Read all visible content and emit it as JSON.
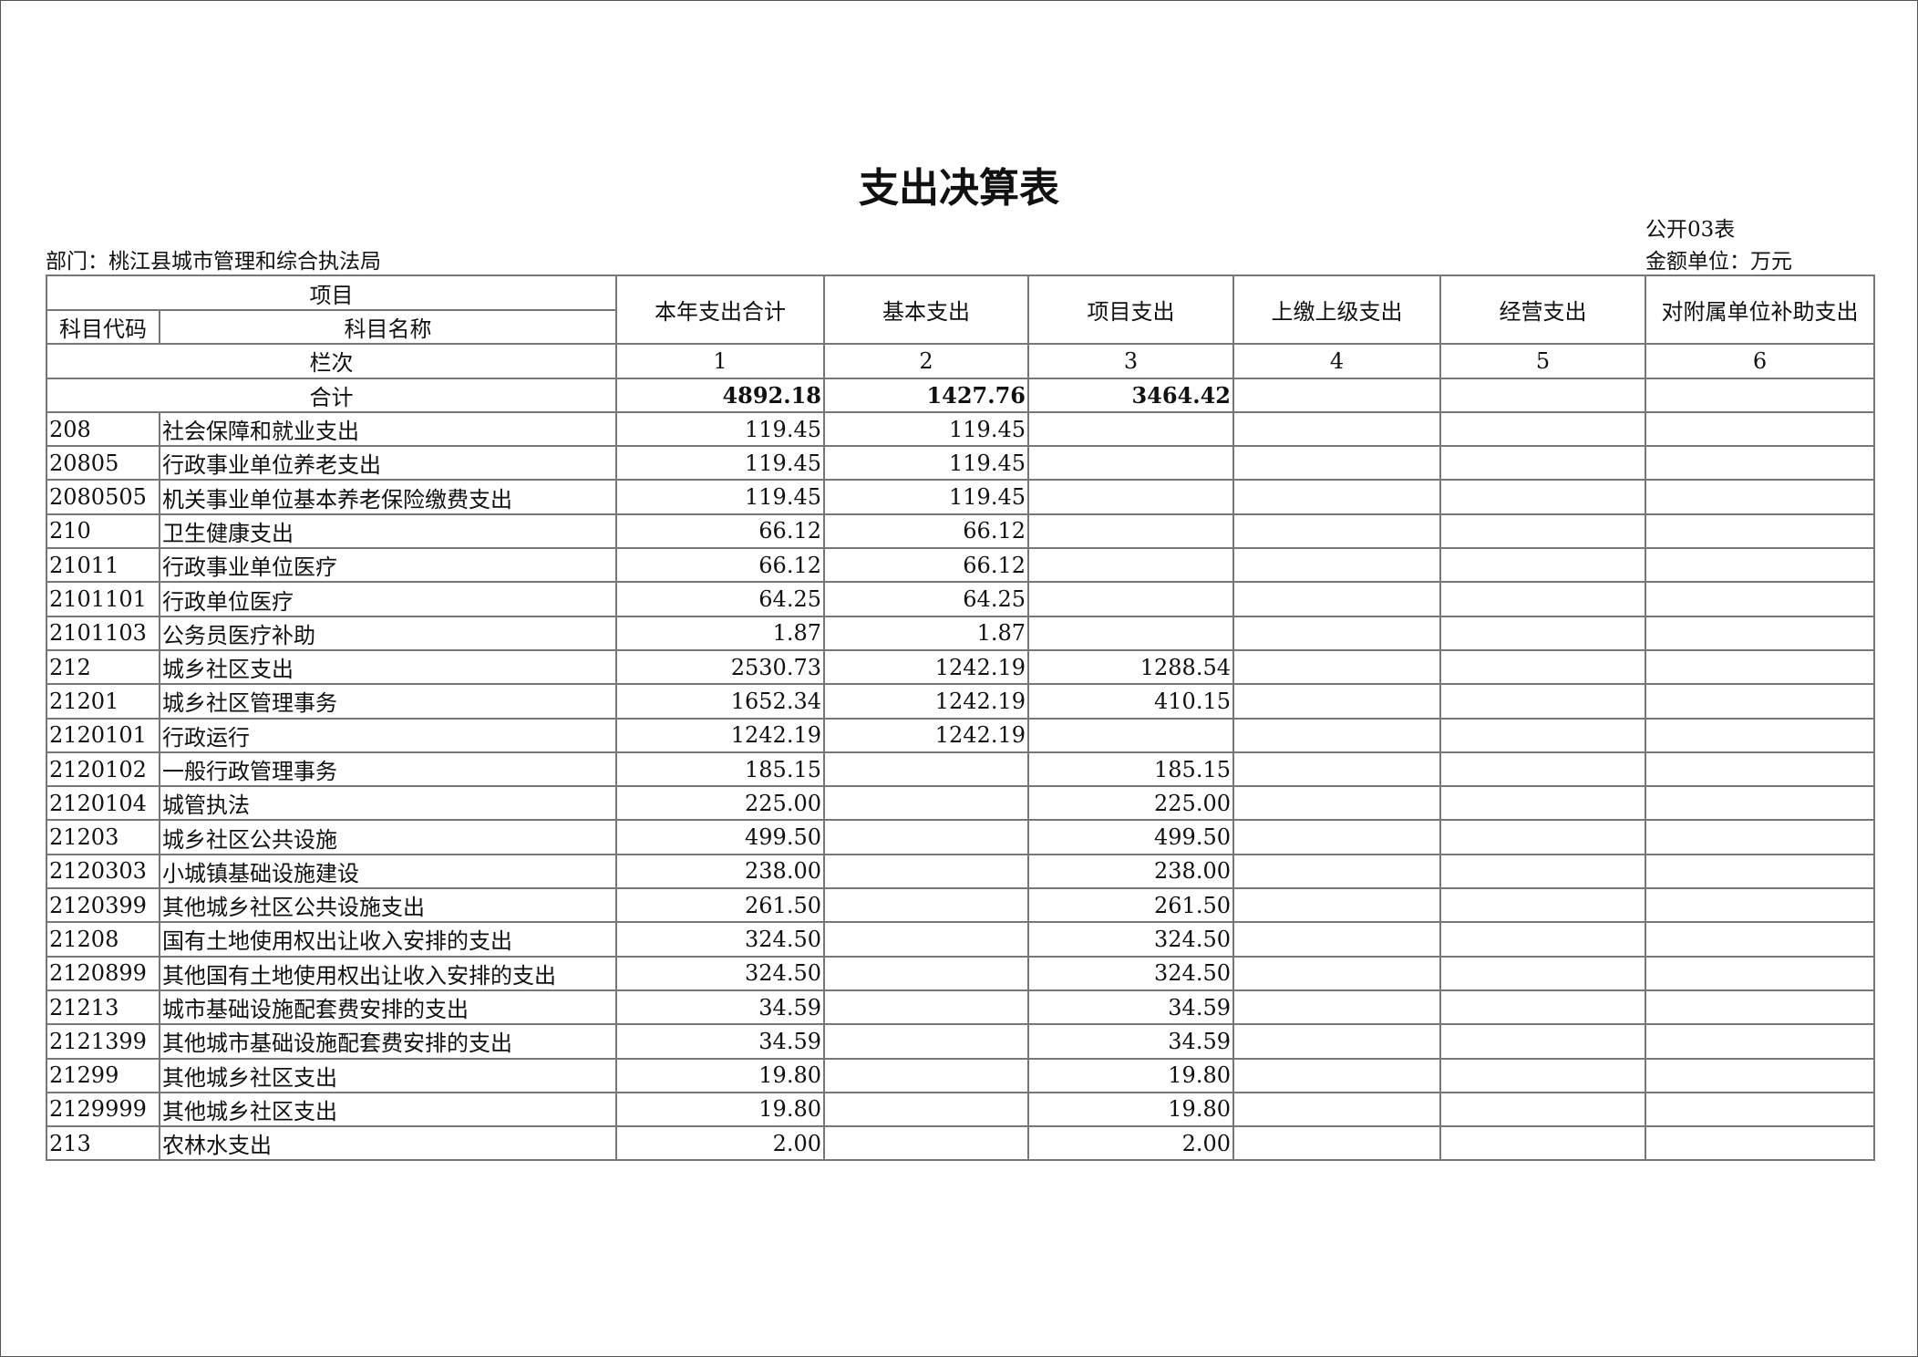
{
  "title": "支出决算表",
  "form_no": "公开03表",
  "department": "部门：桃江县城市管理和综合执法局",
  "unit": "金额单位：万元",
  "headers": {
    "item": "项目",
    "code": "科目代码",
    "name": "科目名称",
    "columns": [
      "本年支出合计",
      "基本支出",
      "项目支出",
      "上缴上级支出",
      "经营支出",
      "对附属单位补助支出"
    ],
    "order_label": "栏次",
    "order_numbers": [
      "1",
      "2",
      "3",
      "4",
      "5",
      "6"
    ]
  },
  "total": {
    "label": "合计",
    "values": [
      "4892.18",
      "1427.76",
      "3464.42",
      "",
      "",
      ""
    ]
  },
  "rows": [
    {
      "code": "208",
      "name": "社会保障和就业支出",
      "values": [
        "119.45",
        "119.45",
        "",
        "",
        "",
        ""
      ]
    },
    {
      "code": "20805",
      "name": "行政事业单位养老支出",
      "values": [
        "119.45",
        "119.45",
        "",
        "",
        "",
        ""
      ]
    },
    {
      "code": "2080505",
      "name": "机关事业单位基本养老保险缴费支出",
      "values": [
        "119.45",
        "119.45",
        "",
        "",
        "",
        ""
      ]
    },
    {
      "code": "210",
      "name": "卫生健康支出",
      "values": [
        "66.12",
        "66.12",
        "",
        "",
        "",
        ""
      ]
    },
    {
      "code": "21011",
      "name": "行政事业单位医疗",
      "values": [
        "66.12",
        "66.12",
        "",
        "",
        "",
        ""
      ]
    },
    {
      "code": "2101101",
      "name": "行政单位医疗",
      "values": [
        "64.25",
        "64.25",
        "",
        "",
        "",
        ""
      ]
    },
    {
      "code": "2101103",
      "name": "公务员医疗补助",
      "values": [
        "1.87",
        "1.87",
        "",
        "",
        "",
        ""
      ]
    },
    {
      "code": "212",
      "name": "城乡社区支出",
      "values": [
        "2530.73",
        "1242.19",
        "1288.54",
        "",
        "",
        ""
      ]
    },
    {
      "code": "21201",
      "name": "城乡社区管理事务",
      "values": [
        "1652.34",
        "1242.19",
        "410.15",
        "",
        "",
        ""
      ]
    },
    {
      "code": "2120101",
      "name": "行政运行",
      "values": [
        "1242.19",
        "1242.19",
        "",
        "",
        "",
        ""
      ]
    },
    {
      "code": "2120102",
      "name": "一般行政管理事务",
      "values": [
        "185.15",
        "",
        "185.15",
        "",
        "",
        ""
      ]
    },
    {
      "code": "2120104",
      "name": "城管执法",
      "values": [
        "225.00",
        "",
        "225.00",
        "",
        "",
        ""
      ]
    },
    {
      "code": "21203",
      "name": "城乡社区公共设施",
      "values": [
        "499.50",
        "",
        "499.50",
        "",
        "",
        ""
      ]
    },
    {
      "code": "2120303",
      "name": "小城镇基础设施建设",
      "values": [
        "238.00",
        "",
        "238.00",
        "",
        "",
        ""
      ]
    },
    {
      "code": "2120399",
      "name": "其他城乡社区公共设施支出",
      "values": [
        "261.50",
        "",
        "261.50",
        "",
        "",
        ""
      ]
    },
    {
      "code": "21208",
      "name": "国有土地使用权出让收入安排的支出",
      "values": [
        "324.50",
        "",
        "324.50",
        "",
        "",
        ""
      ]
    },
    {
      "code": "2120899",
      "name": "其他国有土地使用权出让收入安排的支出",
      "values": [
        "324.50",
        "",
        "324.50",
        "",
        "",
        ""
      ]
    },
    {
      "code": "21213",
      "name": "城市基础设施配套费安排的支出",
      "values": [
        "34.59",
        "",
        "34.59",
        "",
        "",
        ""
      ]
    },
    {
      "code": "2121399",
      "name": "其他城市基础设施配套费安排的支出",
      "values": [
        "34.59",
        "",
        "34.59",
        "",
        "",
        ""
      ]
    },
    {
      "code": "21299",
      "name": "其他城乡社区支出",
      "values": [
        "19.80",
        "",
        "19.80",
        "",
        "",
        ""
      ]
    },
    {
      "code": "2129999",
      "name": "其他城乡社区支出",
      "values": [
        "19.80",
        "",
        "19.80",
        "",
        "",
        ""
      ]
    },
    {
      "code": "213",
      "name": "农林水支出",
      "values": [
        "2.00",
        "",
        "2.00",
        "",
        "",
        ""
      ]
    }
  ]
}
